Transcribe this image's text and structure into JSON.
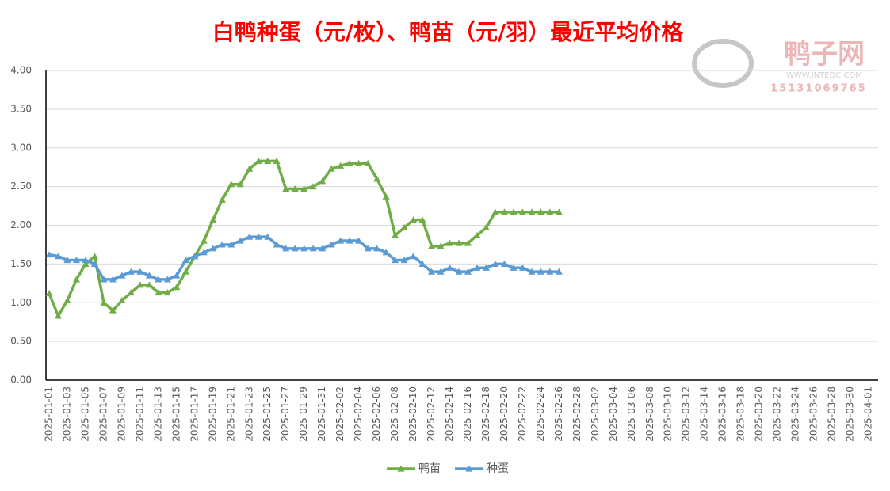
{
  "chart_data": {
    "type": "line",
    "title": "白鸭种蛋（元/枚）、鸭苗（元/羽）最近平均价格",
    "watermark": {
      "name": "鸭子网",
      "site": "WWW.INTEDC.COM",
      "phone": "15131069765"
    },
    "categories": [
      "2025-01-01",
      null,
      "2025-01-03",
      null,
      "2025-01-05",
      null,
      "2025-01-07",
      null,
      "2025-01-09",
      null,
      "2025-01-11",
      null,
      "2025-01-13",
      null,
      "2025-01-15",
      null,
      "2025-01-17",
      null,
      "2025-01-19",
      null,
      "2025-01-21",
      null,
      "2025-01-23",
      null,
      "2025-01-25",
      null,
      "2025-01-27",
      null,
      "2025-01-29",
      null,
      "2025-01-31",
      null,
      "2025-02-02",
      null,
      "2025-02-04",
      null,
      "2025-02-06",
      null,
      "2025-02-08",
      null,
      "2025-02-10",
      null,
      "2025-02-12",
      null,
      "2025-02-14",
      null,
      "2025-02-16",
      null,
      "2025-02-18",
      null,
      "2025-02-20",
      null,
      "2025-02-22",
      null,
      "2025-02-24",
      null,
      "2025-02-26",
      null,
      "2025-02-28",
      null,
      "2025-03-02",
      null,
      "2025-03-04",
      null,
      "2025-03-06",
      null,
      "2025-03-08",
      null,
      "2025-03-10",
      null,
      "2025-03-12",
      null,
      "2025-03-14",
      null,
      "2025-03-16",
      null,
      "2025-03-18",
      null,
      "2025-03-20",
      null,
      "2025-03-22",
      null,
      "2025-03-24",
      null,
      "2025-03-26",
      null,
      "2025-03-28",
      null,
      "2025-03-30",
      null,
      "2025-04-01"
    ],
    "series": [
      {
        "name": "鸭苗",
        "color": "#70ad47",
        "values": [
          1.12,
          0.83,
          1.03,
          1.3,
          1.5,
          1.6,
          1.0,
          0.9,
          1.03,
          1.13,
          1.23,
          1.23,
          1.13,
          1.13,
          1.2,
          1.4,
          1.6,
          1.8,
          2.07,
          2.33,
          2.53,
          2.53,
          2.73,
          2.83,
          2.83,
          2.83,
          2.47,
          2.47,
          2.47,
          2.5,
          2.57,
          2.73,
          2.77,
          2.8,
          2.8,
          2.8,
          2.6,
          2.37,
          1.87,
          1.97,
          2.07,
          2.07,
          1.73,
          1.73,
          1.77,
          1.77,
          1.77,
          1.87,
          1.97,
          2.17,
          2.17,
          2.17,
          2.17,
          2.17,
          2.17,
          2.17,
          2.17,
          null,
          null,
          null,
          null,
          null,
          null,
          null,
          null,
          null,
          null,
          null,
          null,
          null,
          null,
          null,
          null,
          null,
          null,
          null,
          null,
          null,
          null,
          null,
          null,
          null,
          null,
          null,
          null,
          null,
          null,
          null,
          null,
          null,
          null
        ]
      },
      {
        "name": "种蛋",
        "color": "#5b9bd5",
        "values": [
          1.62,
          1.6,
          1.55,
          1.55,
          1.55,
          1.5,
          1.3,
          1.3,
          1.35,
          1.4,
          1.4,
          1.35,
          1.3,
          1.3,
          1.35,
          1.55,
          1.6,
          1.65,
          1.7,
          1.75,
          1.75,
          1.8,
          1.85,
          1.85,
          1.85,
          1.75,
          1.7,
          1.7,
          1.7,
          1.7,
          1.7,
          1.75,
          1.8,
          1.8,
          1.8,
          1.7,
          1.7,
          1.65,
          1.55,
          1.55,
          1.6,
          1.5,
          1.4,
          1.4,
          1.45,
          1.4,
          1.4,
          1.45,
          1.45,
          1.5,
          1.5,
          1.45,
          1.45,
          1.4,
          1.4,
          1.4,
          1.4,
          null,
          null,
          null,
          null,
          null,
          null,
          null,
          null,
          null,
          null,
          null,
          null,
          null,
          null,
          null,
          null,
          null,
          null,
          null,
          null,
          null,
          null,
          null,
          null,
          null,
          null,
          null,
          null,
          null,
          null,
          null,
          null,
          null,
          null
        ]
      }
    ],
    "ylim": [
      0,
      4
    ],
    "yticks": [
      {
        "value": 0,
        "label": "0.00"
      },
      {
        "value": 0.5,
        "label": "0.50"
      },
      {
        "value": 1,
        "label": "1.00"
      },
      {
        "value": 1.5,
        "label": "1.50"
      },
      {
        "value": 2,
        "label": "2.00"
      },
      {
        "value": 2.5,
        "label": "2.50"
      },
      {
        "value": 3,
        "label": "3.00"
      },
      {
        "value": 3.5,
        "label": "3.50"
      },
      {
        "value": 4,
        "label": "4.00"
      }
    ],
    "grid": true,
    "legend": "bottom"
  }
}
